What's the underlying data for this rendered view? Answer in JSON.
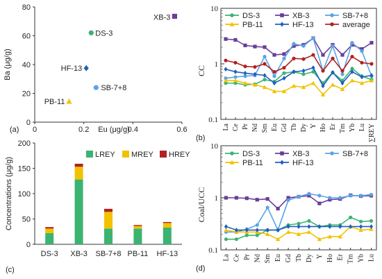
{
  "chart_data": [
    {
      "panel": "a",
      "panel_label": "(a)",
      "type": "scatter",
      "xlabel": "Eu (μg/g)",
      "ylabel": "Ba (μg/g)",
      "xlim": [
        0,
        0.6
      ],
      "ylim": [
        0,
        80
      ],
      "x_ticks": [
        0,
        0.2,
        0.4,
        0.6
      ],
      "x_tick_labels": [
        "0",
        "0.2",
        "0.4",
        "0.6"
      ],
      "y_ticks": [
        0,
        20,
        40,
        60,
        80
      ],
      "grid": false,
      "points": [
        {
          "label": "XB-3",
          "x": 0.57,
          "y": 73.5,
          "color": "#6a3d9a",
          "marker": "square"
        },
        {
          "label": "DS-3",
          "x": 0.23,
          "y": 62,
          "color": "#3cb371",
          "marker": "circle"
        },
        {
          "label": "HF-13",
          "x": 0.21,
          "y": 37.5,
          "color": "#1f5fbf",
          "marker": "diamond"
        },
        {
          "label": "SB-7+8",
          "x": 0.25,
          "y": 24,
          "color": "#5aa3e6",
          "marker": "circle"
        },
        {
          "label": "PB-11",
          "x": 0.14,
          "y": 14.5,
          "color": "#f2c200",
          "marker": "triangle"
        }
      ]
    },
    {
      "panel": "b",
      "panel_label": "(b)",
      "type": "line",
      "ylabel": "CC",
      "y_scale": "log",
      "ylim": [
        0.1,
        10
      ],
      "y_ticks": [
        0.1,
        1,
        10
      ],
      "y_tick_labels": [
        "0.1",
        "1",
        "10"
      ],
      "categories": [
        "La",
        "Ce",
        "Pr",
        "Nd",
        "Sm",
        "Eu",
        "Gd",
        "Tb",
        "Dy",
        "Y",
        "Ho",
        "Er",
        "Tm",
        "Yb",
        "Lu",
        "∑REY"
      ],
      "legend_position": "top",
      "grid": false,
      "series": [
        {
          "name": "DS-3",
          "color": "#3cb371",
          "marker": "circle",
          "values": [
            0.45,
            0.45,
            0.42,
            0.43,
            0.52,
            0.48,
            0.68,
            0.72,
            0.65,
            0.72,
            0.45,
            0.7,
            0.5,
            0.82,
            0.6,
            0.52
          ]
        },
        {
          "name": "XB-3",
          "color": "#6a3d9a",
          "marker": "square",
          "values": [
            2.8,
            2.7,
            2.15,
            2.05,
            2.0,
            1.45,
            1.5,
            2.1,
            2.2,
            2.9,
            1.45,
            2.2,
            1.45,
            2.2,
            1.85,
            2.4
          ]
        },
        {
          "name": "SB-7+8",
          "color": "#5aa3e6",
          "marker": "circle",
          "values": [
            0.55,
            0.58,
            0.6,
            0.62,
            1.35,
            0.6,
            1.25,
            2.3,
            2.1,
            2.9,
            0.75,
            2.1,
            0.65,
            2.4,
            1.7,
            0.6
          ]
        },
        {
          "name": "PB-11",
          "color": "#f2c200",
          "marker": "triangle",
          "values": [
            0.5,
            0.5,
            0.45,
            0.42,
            0.38,
            0.32,
            0.32,
            0.4,
            0.38,
            0.45,
            0.28,
            0.42,
            0.35,
            0.5,
            0.45,
            0.5
          ]
        },
        {
          "name": "HF-13",
          "color": "#1f5fbf",
          "marker": "diamond",
          "values": [
            0.8,
            0.72,
            0.68,
            0.65,
            0.62,
            0.45,
            0.55,
            0.72,
            0.75,
            0.85,
            0.4,
            0.7,
            0.45,
            0.72,
            0.58,
            0.62
          ]
        },
        {
          "name": "average",
          "color": "#b22222",
          "marker": "circle",
          "values": [
            1.15,
            1.05,
            0.9,
            0.88,
            1.0,
            0.72,
            0.85,
            1.25,
            1.22,
            1.45,
            0.75,
            1.25,
            0.75,
            1.35,
            1.05,
            1.0
          ]
        }
      ]
    },
    {
      "panel": "c",
      "panel_label": "(c)",
      "type": "bar",
      "stacked": true,
      "ylabel": "Concentrations (μg/g)",
      "ylim": [
        0,
        200
      ],
      "y_ticks": [
        0,
        50,
        100,
        150,
        200
      ],
      "categories": [
        "DS-3",
        "XB-3",
        "SB-7+8",
        "PB-11",
        "HF-13"
      ],
      "legend_position": "top",
      "grid": false,
      "series": [
        {
          "name": "LREY",
          "color": "#3cb371",
          "values": [
            22,
            128,
            31,
            31,
            33
          ]
        },
        {
          "name": "MREY",
          "color": "#f2c200",
          "values": [
            9,
            25,
            33,
            5,
            9
          ]
        },
        {
          "name": "HREY",
          "color": "#b22222",
          "values": [
            3,
            6,
            6,
            2,
            2
          ]
        }
      ]
    },
    {
      "panel": "d",
      "panel_label": "(d)",
      "type": "line",
      "ylabel": "Coal/UCC",
      "y_scale": "log",
      "ylim": [
        0.1,
        10
      ],
      "y_ticks": [
        0.1,
        1,
        10
      ],
      "y_tick_labels": [
        "0.1",
        "1",
        "10"
      ],
      "categories": [
        "La",
        "Ce",
        "Pr",
        "Nd",
        "Sm",
        "Eu",
        "Gd",
        "Tb",
        "Dy",
        "Y",
        "Ho",
        "Er",
        "Tm",
        "Yb",
        "Lu"
      ],
      "legend_position": "top",
      "grid": false,
      "series": [
        {
          "name": "DS-3",
          "color": "#3cb371",
          "marker": "circle",
          "values": [
            0.16,
            0.16,
            0.19,
            0.19,
            0.24,
            0.24,
            0.3,
            0.32,
            0.36,
            0.28,
            0.3,
            0.3,
            0.42,
            0.35,
            0.36
          ]
        },
        {
          "name": "XB-3",
          "color": "#6a3d9a",
          "marker": "square",
          "values": [
            1.0,
            1.0,
            0.98,
            0.92,
            0.95,
            0.62,
            1.0,
            1.05,
            1.1,
            0.78,
            0.92,
            0.95,
            1.12,
            1.08,
            1.1
          ]
        },
        {
          "name": "SB-7+8",
          "color": "#5aa3e6",
          "marker": "circle",
          "values": [
            0.22,
            0.22,
            0.25,
            0.3,
            0.65,
            0.24,
            0.9,
            1.05,
            1.2,
            1.1,
            1.0,
            1.0,
            1.1,
            1.1,
            1.15
          ]
        },
        {
          "name": "PB-11",
          "color": "#f2c200",
          "marker": "triangle",
          "values": [
            0.24,
            0.22,
            0.22,
            0.22,
            0.2,
            0.16,
            0.22,
            0.2,
            0.22,
            0.16,
            0.18,
            0.18,
            0.28,
            0.24,
            0.25
          ]
        },
        {
          "name": "HF-13",
          "color": "#1f5fbf",
          "marker": "diamond",
          "values": [
            0.28,
            0.24,
            0.24,
            0.24,
            0.24,
            0.24,
            0.28,
            0.28,
            0.28,
            0.28,
            0.28,
            0.28,
            0.28,
            0.28,
            0.28
          ]
        }
      ]
    }
  ]
}
